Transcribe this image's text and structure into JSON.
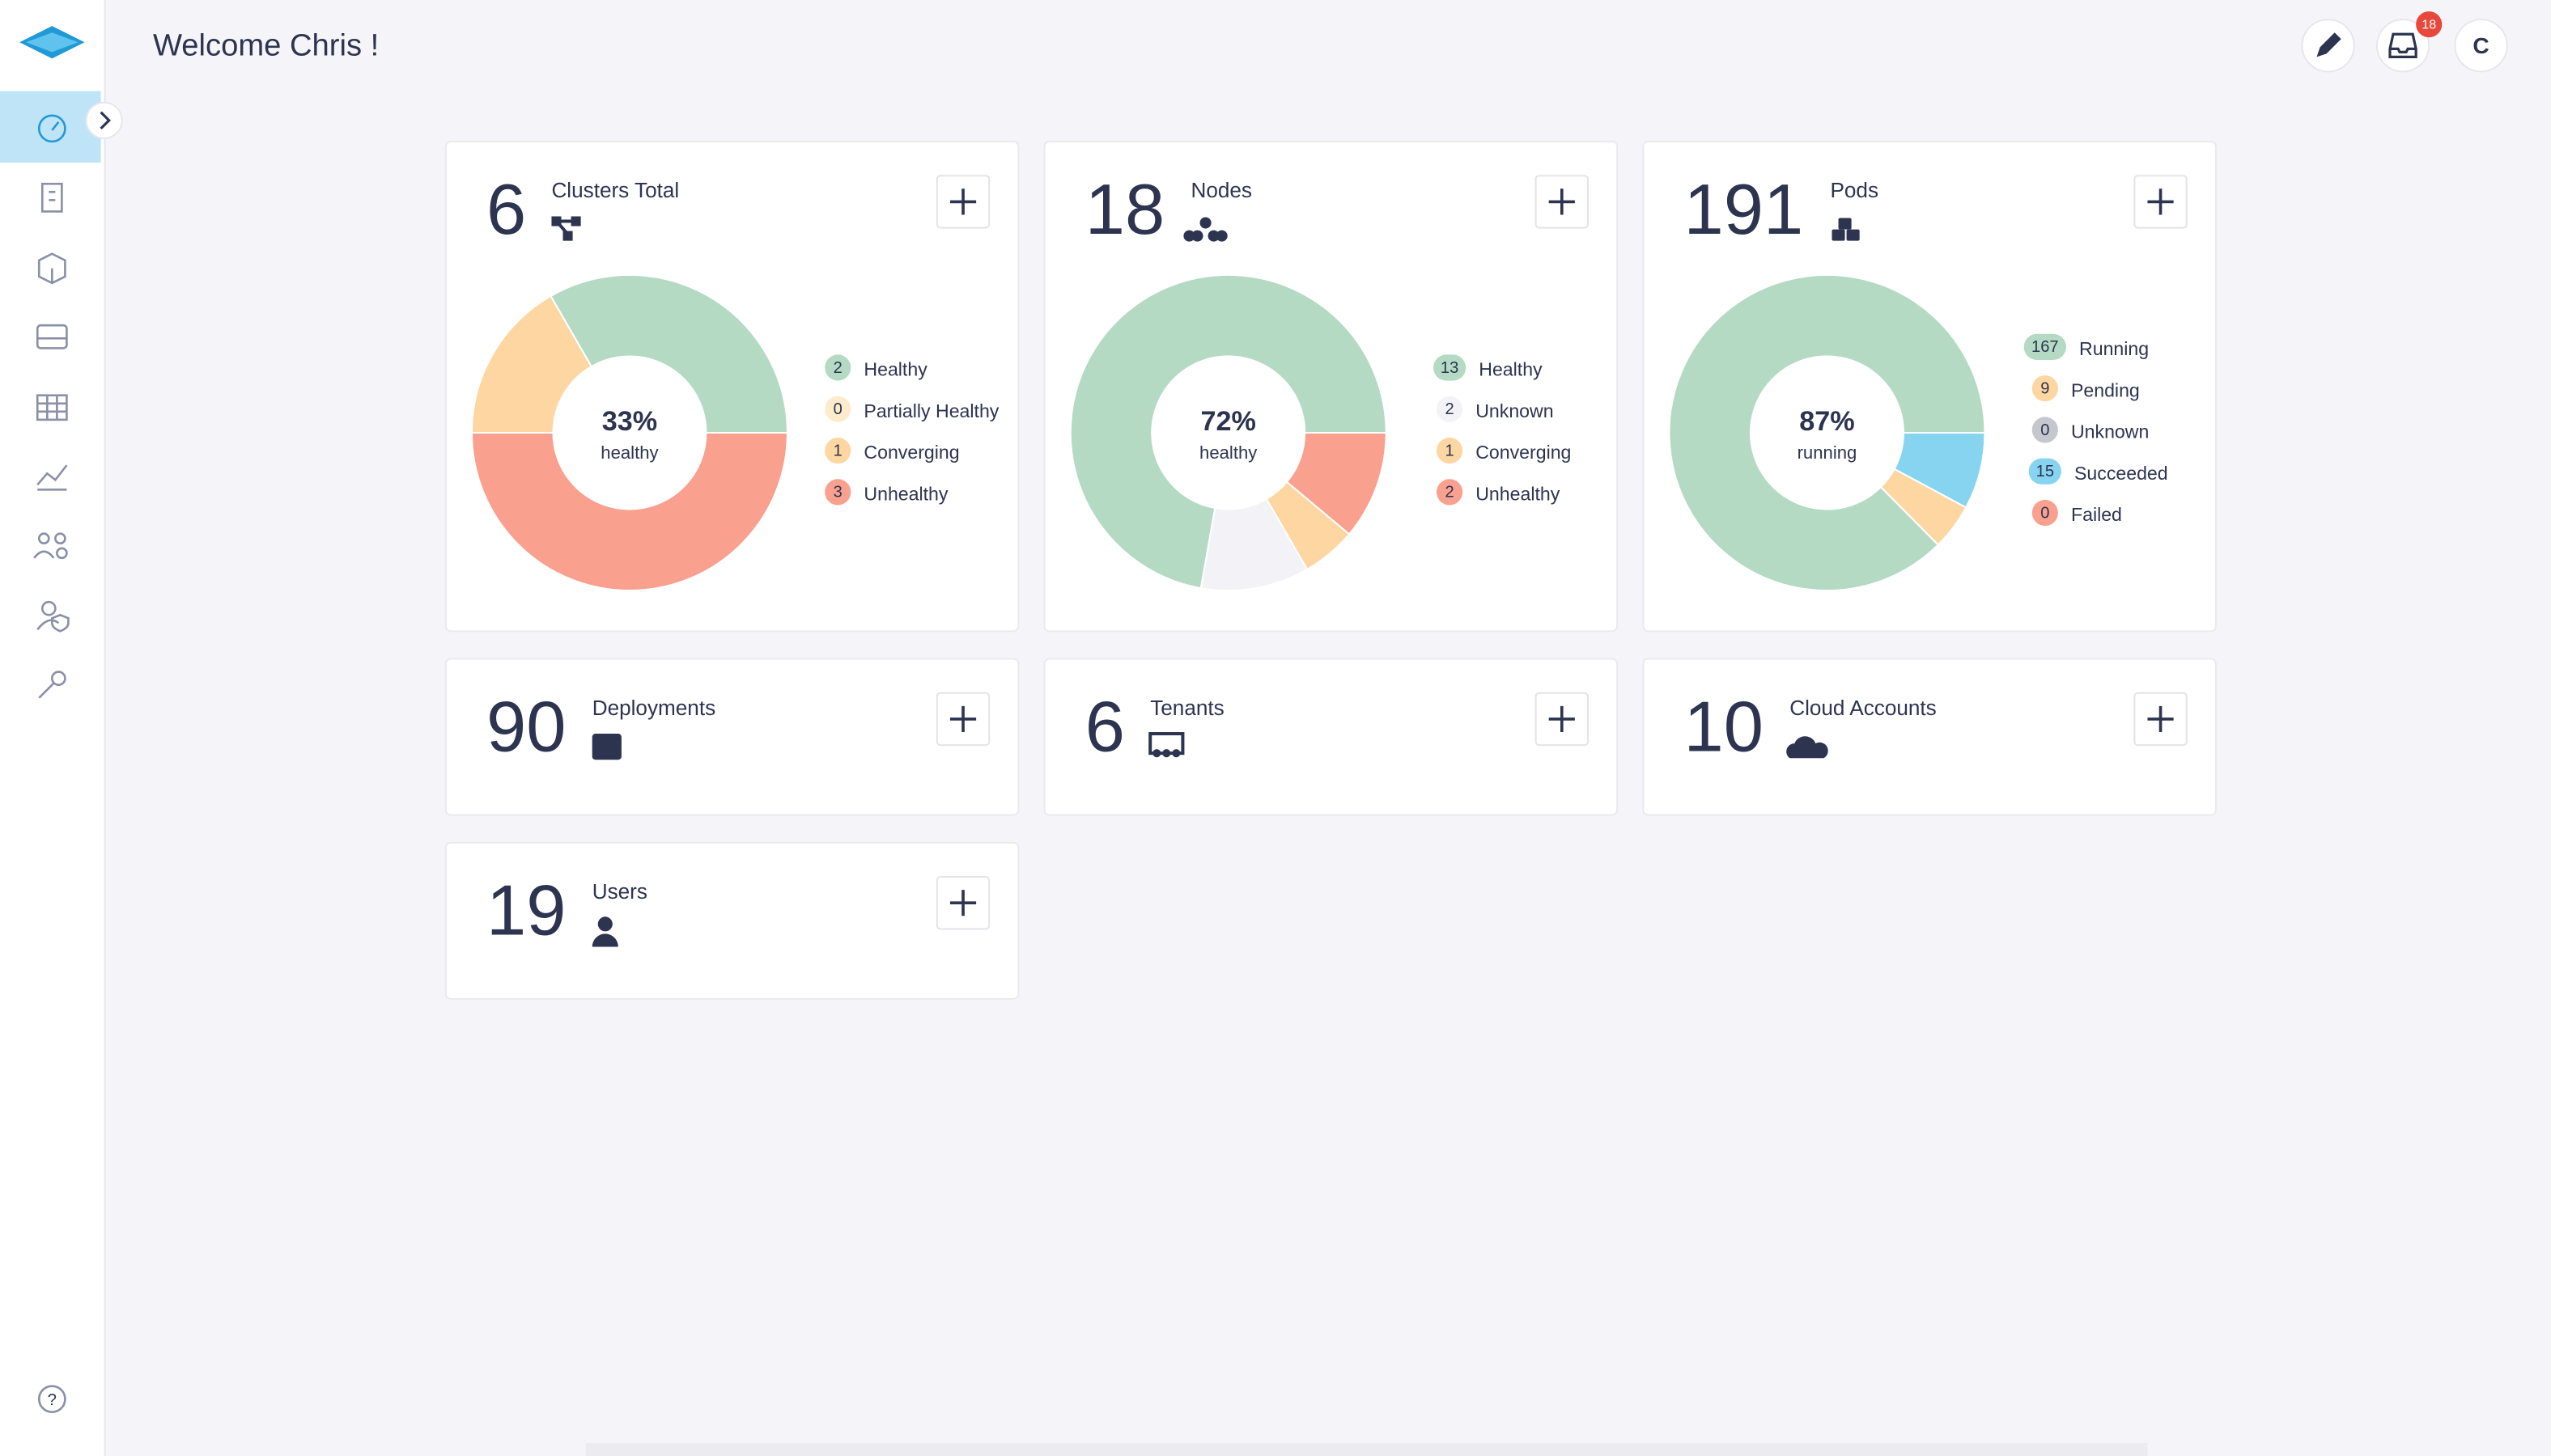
{
  "header": {
    "title": "Welcome Chris !",
    "notifications": 18,
    "avatar": "C"
  },
  "cards": [
    {
      "total": 6,
      "title": "Clusters Total",
      "percent": "33%",
      "percent_label": "healthy",
      "legend": [
        {
          "count": 2,
          "label": "Healthy",
          "color": "#b5dac4"
        },
        {
          "count": 0,
          "label": "Partially Healthy",
          "color": "#fdeccb"
        },
        {
          "count": 1,
          "label": "Converging",
          "color": "#fdd6a2"
        },
        {
          "count": 3,
          "label": "Unhealthy",
          "color": "#f9a08f"
        }
      ]
    },
    {
      "total": 18,
      "title": "Nodes",
      "percent": "72%",
      "percent_label": "healthy",
      "legend": [
        {
          "count": 13,
          "label": "Healthy",
          "color": "#b5dac4"
        },
        {
          "count": 2,
          "label": "Unknown",
          "color": "#f3f3f7"
        },
        {
          "count": 1,
          "label": "Converging",
          "color": "#fdd6a2"
        },
        {
          "count": 2,
          "label": "Unhealthy",
          "color": "#f9a08f"
        }
      ]
    },
    {
      "total": 191,
      "title": "Pods",
      "percent": "87%",
      "percent_label": "running",
      "legend": [
        {
          "count": 167,
          "label": "Running",
          "color": "#b5dac4"
        },
        {
          "count": 9,
          "label": "Pending",
          "color": "#fdd6a2"
        },
        {
          "count": 0,
          "label": "Unknown",
          "color": "#c6c6cf"
        },
        {
          "count": 15,
          "label": "Succeeded",
          "color": "#87d4f0"
        },
        {
          "count": 0,
          "label": "Failed",
          "color": "#f9a08f"
        }
      ]
    },
    {
      "total": 90,
      "title": "Deployments"
    },
    {
      "total": 6,
      "title": "Tenants"
    },
    {
      "total": 10,
      "title": "Cloud Accounts"
    },
    {
      "total": 19,
      "title": "Users"
    }
  ]
}
